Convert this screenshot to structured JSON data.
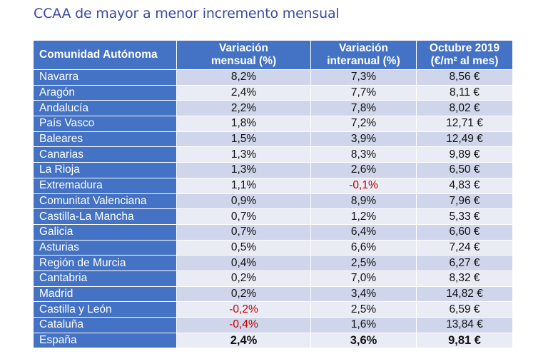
{
  "title": "CCAA de mayor a menor incremento mensual",
  "headers": [
    "Comunidad Autónoma",
    "Variación\nmensual (%)",
    "Variación\ninteranual (%)",
    "Octubre 2019\n(€/m² al mes)"
  ],
  "rows": [
    [
      "Navarra",
      "8,2%",
      "7,3%",
      "8,56 €"
    ],
    [
      "Aragón",
      "2,4%",
      "7,7%",
      "8,11 €"
    ],
    [
      "Andalucía",
      "2,2%",
      "7,8%",
      "8,02 €"
    ],
    [
      "País Vasco",
      "1,8%",
      "7,2%",
      "12,71 €"
    ],
    [
      "Baleares",
      "1,5%",
      "3,9%",
      "12,49 €"
    ],
    [
      "Canarias",
      "1,3%",
      "8,3%",
      "9,89 €"
    ],
    [
      "La Rioja",
      "1,3%",
      "2,6%",
      "6,50 €"
    ],
    [
      "Extremadura",
      "1,1%",
      "-0,1%",
      "4,83 €"
    ],
    [
      "Comunitat Valenciana",
      "0,9%",
      "8,9%",
      "7,96 €"
    ],
    [
      "Castilla-La Mancha",
      "0,7%",
      "1,2%",
      "5,33 €"
    ],
    [
      "Galicia",
      "0,7%",
      "6,4%",
      "6,60 €"
    ],
    [
      "Asturias",
      "0,5%",
      "6,6%",
      "7,24 €"
    ],
    [
      "Región de Murcia",
      "0,4%",
      "2,5%",
      "6,27 €"
    ],
    [
      "Cantabria",
      "0,2%",
      "7,0%",
      "8,32 €"
    ],
    [
      "Madrid",
      "0,2%",
      "3,4%",
      "14,82 €"
    ],
    [
      "Castilla y León",
      "-0,2%",
      "2,5%",
      "6,59 €"
    ],
    [
      "Cataluña",
      "-0,4%",
      "1,6%",
      "13,84 €"
    ],
    [
      "España",
      "2,4%",
      "3,6%",
      "9,81 €"
    ]
  ],
  "colors": {
    "header_bg": "#4472c4",
    "row_odd": "#cfd5ea",
    "row_even": "#e9ebf5",
    "negative": "#c00000",
    "title": "#3a4aa0"
  }
}
